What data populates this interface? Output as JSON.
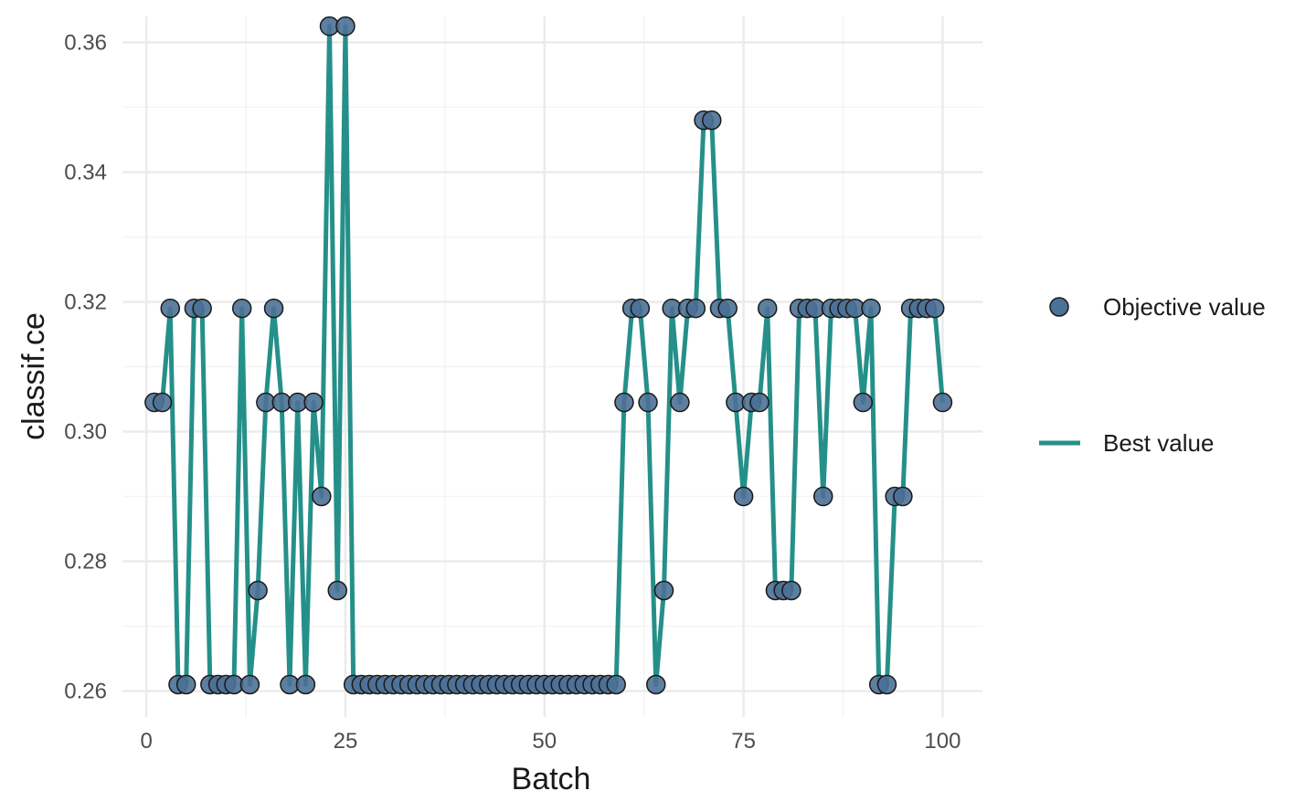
{
  "chart_data": {
    "type": "line",
    "xlabel": "Batch",
    "ylabel": "classif.ce",
    "xlim": [
      -3,
      105
    ],
    "ylim": [
      0.256,
      0.364
    ],
    "x_ticks": [
      0,
      25,
      50,
      75,
      100
    ],
    "x_tick_labels": [
      "0",
      "25",
      "50",
      "75",
      "100"
    ],
    "y_ticks": [
      0.26,
      0.28,
      0.3,
      0.32,
      0.34,
      0.36
    ],
    "y_tick_labels": [
      "0.26",
      "0.28",
      "0.30",
      "0.32",
      "0.34",
      "0.36"
    ],
    "grid": true,
    "legend_position": "right",
    "colors": {
      "line": "#259089",
      "point_fill": "#4c7196",
      "point_stroke": "#1a1a1a",
      "grid_major": "#ebebeb",
      "grid_minor": "#f4f4f4"
    },
    "series": [
      {
        "name": "Objective value",
        "marker": "point",
        "x": [
          1,
          2,
          3,
          4,
          5,
          6,
          7,
          8,
          9,
          10,
          11,
          12,
          13,
          14,
          15,
          16,
          17,
          18,
          19,
          20,
          21,
          22,
          23,
          24,
          25,
          26,
          27,
          28,
          29,
          30,
          31,
          32,
          33,
          34,
          35,
          36,
          37,
          38,
          39,
          40,
          41,
          42,
          43,
          44,
          45,
          46,
          47,
          48,
          49,
          50,
          51,
          52,
          53,
          54,
          55,
          56,
          57,
          58,
          59,
          60,
          61,
          62,
          63,
          64,
          65,
          66,
          67,
          68,
          69,
          70,
          71,
          72,
          73,
          74,
          75,
          76,
          77,
          78,
          79,
          80,
          81,
          82,
          83,
          84,
          85,
          86,
          87,
          88,
          89,
          90,
          91,
          92,
          93,
          94,
          95,
          96,
          97,
          98,
          99,
          100
        ],
        "values": [
          0.3045,
          0.3045,
          0.319,
          0.261,
          0.261,
          0.319,
          0.319,
          0.261,
          0.261,
          0.261,
          0.261,
          0.319,
          0.261,
          0.2755,
          0.3045,
          0.319,
          0.3045,
          0.261,
          0.3045,
          0.261,
          0.3045,
          0.29,
          0.3625,
          0.2755,
          0.3625,
          0.261,
          0.261,
          0.261,
          0.261,
          0.261,
          0.261,
          0.261,
          0.261,
          0.261,
          0.261,
          0.261,
          0.261,
          0.261,
          0.261,
          0.261,
          0.261,
          0.261,
          0.261,
          0.261,
          0.261,
          0.261,
          0.261,
          0.261,
          0.261,
          0.261,
          0.261,
          0.261,
          0.261,
          0.261,
          0.261,
          0.261,
          0.261,
          0.261,
          0.261,
          0.3045,
          0.319,
          0.319,
          0.3045,
          0.261,
          0.2755,
          0.319,
          0.3045,
          0.319,
          0.319,
          0.348,
          0.348,
          0.319,
          0.319,
          0.3045,
          0.29,
          0.3045,
          0.3045,
          0.319,
          0.2755,
          0.2755,
          0.2755,
          0.319,
          0.319,
          0.319,
          0.29,
          0.319,
          0.319,
          0.319,
          0.319,
          0.3045,
          0.319,
          0.261,
          0.261,
          0.29,
          0.29,
          0.319,
          0.319,
          0.319,
          0.319,
          0.3045
        ]
      },
      {
        "name": "Best value",
        "marker": "line",
        "values_ref": "Objective value"
      }
    ]
  }
}
